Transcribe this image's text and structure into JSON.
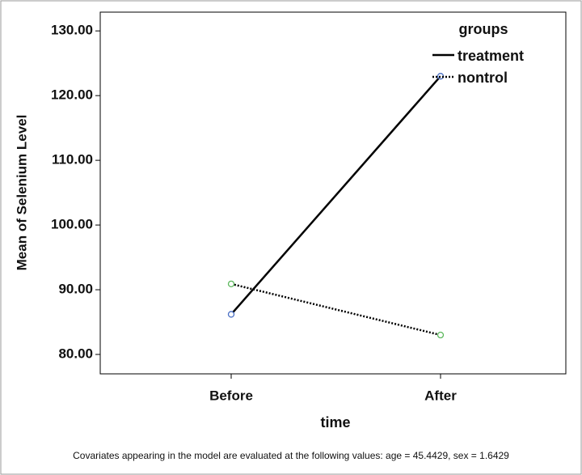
{
  "chart_data": {
    "type": "line",
    "y_label": "Mean of Selenium Level",
    "x_label": "time",
    "legend_title": "groups",
    "legend": "top-right",
    "footnote": "Covariates appearing in the model are evaluated at the following values: age = 45.4429, sex = 1.6429",
    "categories": [
      "Before",
      "After"
    ],
    "series": [
      {
        "name": "treatment",
        "color": "#000000",
        "line_style": "solid",
        "marker_color": "#4a6fc4",
        "values": [
          86.2,
          123.0
        ]
      },
      {
        "name": "nontrol",
        "color": "#000000",
        "line_style": "dotted",
        "marker_color": "#5cb85c",
        "values": [
          90.9,
          83.0
        ]
      }
    ],
    "ylim": [
      77,
      132.9
    ],
    "yticks": [
      {
        "value": 80,
        "label": "80.00"
      },
      {
        "value": 90,
        "label": "90.00"
      },
      {
        "value": 100,
        "label": "100.00"
      },
      {
        "value": 110,
        "label": "110.00"
      },
      {
        "value": 120,
        "label": "120.00"
      },
      {
        "value": 130,
        "label": "130.00"
      }
    ]
  }
}
